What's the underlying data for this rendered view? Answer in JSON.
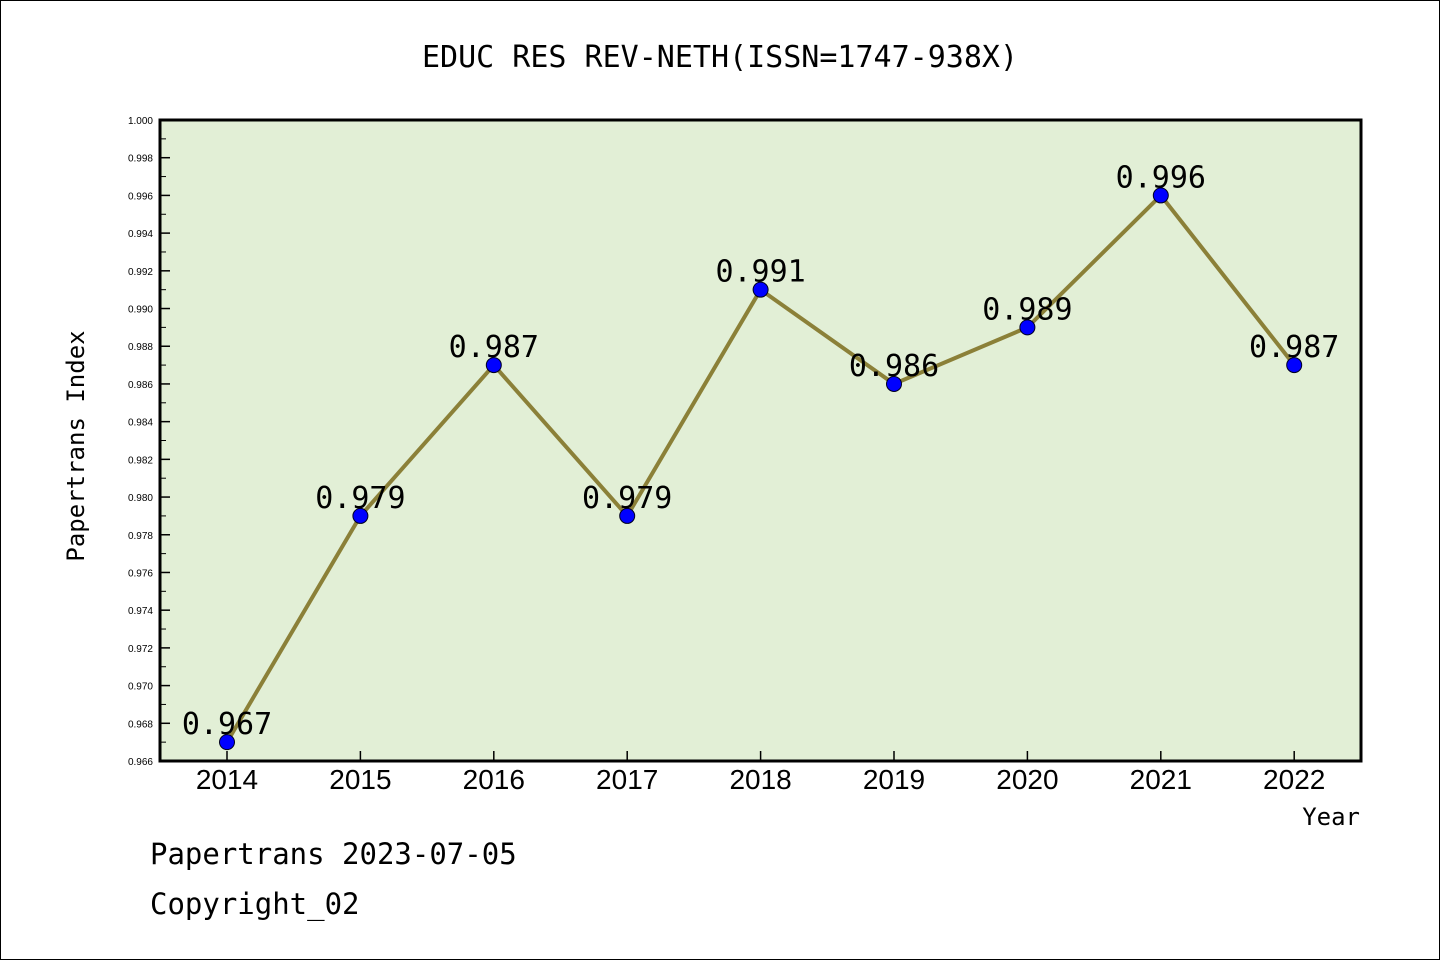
{
  "chart_data": {
    "type": "line",
    "title": "EDUC RES REV-NETH(ISSN=1747-938X)",
    "xlabel": "Year",
    "ylabel": "Papertrans Index",
    "x": [
      "2014",
      "2015",
      "2016",
      "2017",
      "2018",
      "2019",
      "2020",
      "2021",
      "2022"
    ],
    "values": [
      0.967,
      0.979,
      0.987,
      0.979,
      0.991,
      0.986,
      0.989,
      0.996,
      0.987
    ],
    "data_labels": [
      "0.967",
      "0.979",
      "0.987",
      "0.979",
      "0.991",
      "0.986",
      "0.989",
      "0.996",
      "0.987"
    ],
    "ylim": [
      0.966,
      1.0
    ],
    "y_ticks": [
      "0.966",
      "0.968",
      "0.970",
      "0.972",
      "0.974",
      "0.976",
      "0.978",
      "0.980",
      "0.982",
      "0.984",
      "0.986",
      "0.988",
      "0.990",
      "0.992",
      "0.994",
      "0.996",
      "0.998",
      "1.000"
    ],
    "grid": false,
    "legend": "none",
    "colors": {
      "plot_background": "#e2efd6",
      "line": "#8b8038",
      "marker": "#0000ff"
    }
  },
  "footer": {
    "line1": "Papertrans 2023-07-05",
    "line2": "Copyright_02"
  }
}
